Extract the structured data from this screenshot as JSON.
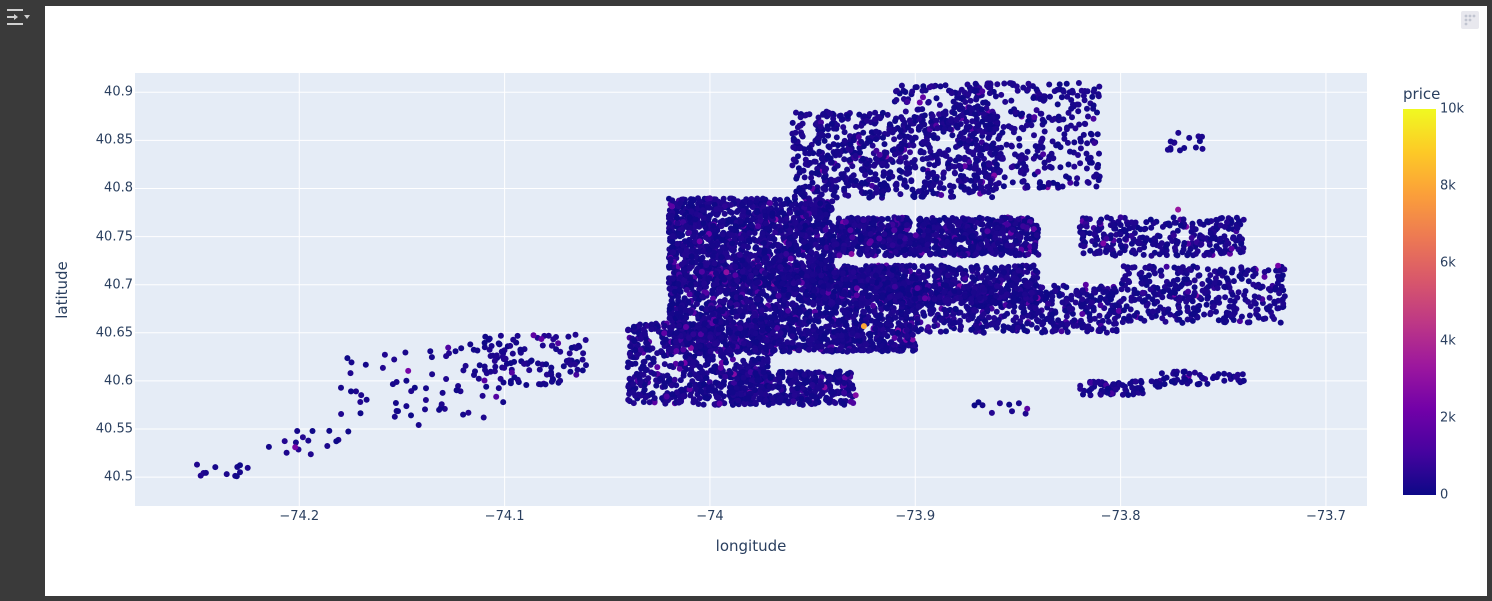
{
  "chart_data": {
    "type": "scatter",
    "xlabel": "longitude",
    "ylabel": "latitude",
    "xlim": [
      -74.28,
      -73.68
    ],
    "ylim": [
      40.47,
      40.92
    ],
    "x_ticks": [
      {
        "value": -74.2,
        "label": "−74.2"
      },
      {
        "value": -74.1,
        "label": "−74.1"
      },
      {
        "value": -74.0,
        "label": "−74"
      },
      {
        "value": -73.9,
        "label": "−73.9"
      },
      {
        "value": -73.8,
        "label": "−73.8"
      },
      {
        "value": -73.7,
        "label": "−73.7"
      }
    ],
    "y_ticks": [
      {
        "value": 40.5,
        "label": "40.5"
      },
      {
        "value": 40.55,
        "label": "40.55"
      },
      {
        "value": 40.6,
        "label": "40.6"
      },
      {
        "value": 40.65,
        "label": "40.65"
      },
      {
        "value": 40.7,
        "label": "40.7"
      },
      {
        "value": 40.75,
        "label": "40.75"
      },
      {
        "value": 40.8,
        "label": "40.8"
      },
      {
        "value": 40.85,
        "label": "40.85"
      },
      {
        "value": 40.9,
        "label": "40.9"
      }
    ],
    "grid": true,
    "colorbar": {
      "title": "price",
      "range": [
        0,
        10000
      ],
      "ticks": [
        {
          "value": 0,
          "label": "0"
        },
        {
          "value": 2000,
          "label": "2k"
        },
        {
          "value": 4000,
          "label": "4k"
        },
        {
          "value": 6000,
          "label": "6k"
        },
        {
          "value": 8000,
          "label": "8k"
        },
        {
          "value": 10000,
          "label": "10k"
        }
      ],
      "colorscale": [
        "#0d0887",
        "#46039f",
        "#7201a8",
        "#9c179e",
        "#bd3786",
        "#d8576b",
        "#ed7953",
        "#fb9f3a",
        "#fdca26",
        "#f0f921"
      ]
    },
    "clusters": [
      {
        "lon": [
          -74.255,
          -74.225
        ],
        "lat": [
          40.498,
          40.515
        ],
        "n": 12
      },
      {
        "lon": [
          -74.215,
          -74.18
        ],
        "lat": [
          40.52,
          40.56
        ],
        "n": 14
      },
      {
        "lon": [
          -74.18,
          -74.14
        ],
        "lat": [
          40.535,
          40.63
        ],
        "n": 30
      },
      {
        "lon": [
          -74.14,
          -74.1
        ],
        "lat": [
          40.56,
          40.64
        ],
        "n": 45
      },
      {
        "lon": [
          -74.11,
          -74.06
        ],
        "lat": [
          40.595,
          40.648
        ],
        "n": 110
      },
      {
        "lon": [
          -74.04,
          -73.97
        ],
        "lat": [
          40.575,
          40.66
        ],
        "n": 700
      },
      {
        "lon": [
          -73.99,
          -73.93
        ],
        "lat": [
          40.575,
          40.61
        ],
        "n": 350
      },
      {
        "lon": [
          -74.02,
          -73.9
        ],
        "lat": [
          40.63,
          40.72
        ],
        "n": 1800
      },
      {
        "lon": [
          -74.02,
          -73.94
        ],
        "lat": [
          40.7,
          40.79
        ],
        "n": 1400
      },
      {
        "lon": [
          -73.96,
          -73.86
        ],
        "lat": [
          40.79,
          40.88
        ],
        "n": 700
      },
      {
        "lon": [
          -73.94,
          -73.84
        ],
        "lat": [
          40.73,
          40.77
        ],
        "n": 900
      },
      {
        "lon": [
          -73.95,
          -73.84
        ],
        "lat": [
          40.68,
          40.72
        ],
        "n": 700
      },
      {
        "lon": [
          -73.9,
          -73.8
        ],
        "lat": [
          40.65,
          40.7
        ],
        "n": 500
      },
      {
        "lon": [
          -73.88,
          -73.81
        ],
        "lat": [
          40.8,
          40.91
        ],
        "n": 350
      },
      {
        "lon": [
          -73.91,
          -73.86
        ],
        "lat": [
          40.86,
          40.91
        ],
        "n": 120
      },
      {
        "lon": [
          -73.82,
          -73.74
        ],
        "lat": [
          40.73,
          40.77
        ],
        "n": 300
      },
      {
        "lon": [
          -73.8,
          -73.72
        ],
        "lat": [
          40.66,
          40.72
        ],
        "n": 350
      },
      {
        "lon": [
          -73.82,
          -73.78
        ],
        "lat": [
          40.585,
          40.6
        ],
        "n": 80
      },
      {
        "lon": [
          -73.78,
          -73.74
        ],
        "lat": [
          40.595,
          40.61
        ],
        "n": 50
      },
      {
        "lon": [
          -73.78,
          -73.76
        ],
        "lat": [
          40.838,
          40.858
        ],
        "n": 15
      },
      {
        "lon": [
          -73.875,
          -73.845
        ],
        "lat": [
          40.565,
          40.58
        ],
        "n": 10
      }
    ],
    "highlights": [
      {
        "lon": -73.925,
        "lat": 40.657,
        "price": 8000
      },
      {
        "lon": -73.929,
        "lat": 40.585,
        "price": 2600
      },
      {
        "lon": -73.772,
        "lat": 40.778,
        "price": 3200
      },
      {
        "lon": -74.202,
        "lat": 40.531,
        "price": 2400
      },
      {
        "lon": -74.005,
        "lat": 40.745,
        "price": 2200
      },
      {
        "lon": -73.992,
        "lat": 40.713,
        "price": 3000
      }
    ]
  }
}
